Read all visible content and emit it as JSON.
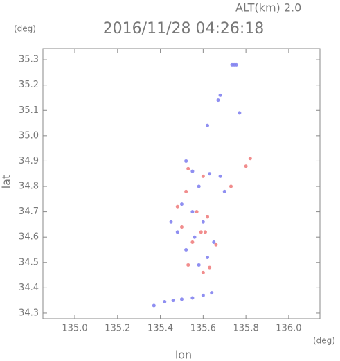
{
  "chart_data": {
    "type": "scatter",
    "title": "2016/11/28 04:26:18",
    "subtitle": "ALT(km) 2.0",
    "y_unit": "(deg)",
    "x_unit": "(deg)",
    "x_label": "lon",
    "y_label": "lat",
    "xlim": [
      134.851,
      136.146
    ],
    "ylim": [
      34.278,
      35.344
    ],
    "xticks": [
      {
        "value": 135,
        "label": "135.0"
      },
      135.2,
      135.4,
      135.6,
      135.8,
      {
        "value": 136,
        "label": "136.0"
      }
    ],
    "yticks": [
      34.3,
      34.4,
      34.5,
      34.6,
      34.7,
      34.8,
      34.9,
      {
        "value": 35,
        "label": "35.0"
      },
      35.1,
      35.2,
      35.3
    ],
    "axis_color": "#888888",
    "series": [
      {
        "color": "#7373ee",
        "x": [
          135.745,
          135.735,
          135.755,
          135.68,
          135.67,
          135.77,
          135.62,
          135.52,
          135.55,
          135.63,
          135.68,
          135.58,
          135.7,
          135.5,
          135.55,
          135.45,
          135.6,
          135.48,
          135.56,
          135.65,
          135.52,
          135.62,
          135.58,
          135.37,
          135.42,
          135.46,
          135.5,
          135.55,
          135.6,
          135.64
        ],
        "y": [
          35.28,
          35.28,
          35.28,
          35.16,
          35.14,
          35.09,
          35.04,
          34.9,
          34.86,
          34.85,
          34.84,
          34.8,
          34.78,
          34.73,
          34.7,
          34.66,
          34.66,
          34.62,
          34.6,
          34.58,
          34.55,
          34.52,
          34.49,
          34.33,
          34.345,
          34.35,
          34.355,
          34.36,
          34.37,
          34.38
        ]
      },
      {
        "color": "#ee7070",
        "x": [
          135.82,
          135.8,
          135.53,
          135.6,
          135.73,
          135.52,
          135.48,
          135.57,
          135.62,
          135.5,
          135.59,
          135.61,
          135.55,
          135.66,
          135.53,
          135.6,
          135.63
        ],
        "y": [
          34.91,
          34.88,
          34.87,
          34.84,
          34.8,
          34.78,
          34.72,
          34.7,
          34.68,
          34.64,
          34.62,
          34.62,
          34.58,
          34.57,
          34.49,
          34.46,
          34.48
        ]
      }
    ]
  }
}
